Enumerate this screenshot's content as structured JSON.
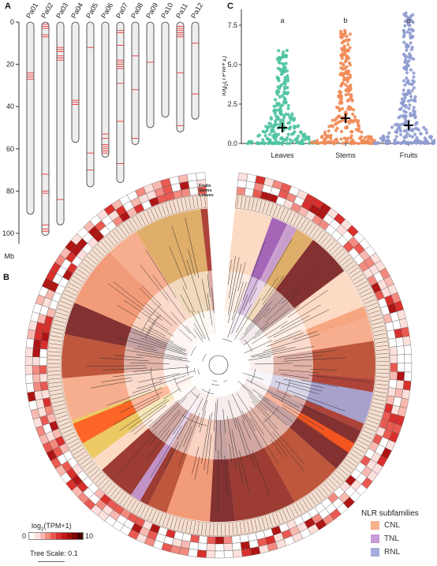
{
  "panels": {
    "a": "A",
    "b": "B",
    "c": "C"
  },
  "panel_a": {
    "chromosomes": [
      {
        "name": "Pa01",
        "length": 91,
        "marks": [
          24,
          25,
          26,
          27
        ]
      },
      {
        "name": "Pa02",
        "length": 101,
        "marks": [
          1,
          2,
          3,
          6,
          7,
          72,
          80,
          81,
          96,
          98,
          99
        ]
      },
      {
        "name": "Pa03",
        "length": 96,
        "marks": [
          12,
          13,
          14,
          16,
          17,
          18,
          84
        ]
      },
      {
        "name": "Pa04",
        "length": 57,
        "marks": [
          37,
          38,
          39
        ]
      },
      {
        "name": "Pa05",
        "length": 78,
        "marks": [
          12,
          62,
          70
        ]
      },
      {
        "name": "Pa06",
        "length": 64,
        "marks": [
          53,
          55,
          58,
          59,
          60,
          61,
          62
        ]
      },
      {
        "name": "Pa07",
        "length": 76,
        "marks": [
          4,
          5,
          11,
          18,
          19,
          20,
          21,
          22,
          29,
          47,
          67
        ]
      },
      {
        "name": "Pa08",
        "length": 58,
        "marks": [
          16,
          32,
          55
        ]
      },
      {
        "name": "Pa09",
        "length": 50,
        "marks": [
          19
        ]
      },
      {
        "name": "Pa10",
        "length": 45,
        "marks": []
      },
      {
        "name": "Pa11",
        "length": 52,
        "marks": [
          2,
          3,
          4,
          5,
          6,
          7,
          24,
          49
        ]
      },
      {
        "name": "Pa12",
        "length": 46,
        "marks": [
          10,
          34
        ]
      }
    ],
    "y_ticks": [
      0,
      20,
      40,
      60,
      80,
      100
    ],
    "y_unit": "Mb"
  },
  "chart_data": [
    {
      "type": "scatter",
      "panel": "C",
      "ylabel_base": "log",
      "ylabel_sub": "2",
      "ylabel_rest": "(TPM+1)",
      "ylim": [
        0,
        8.5
      ],
      "yticks": [
        0.0,
        2.5,
        5.0,
        7.5
      ],
      "ytick_labels": [
        "0.0",
        "2.5",
        "5.0",
        "7.5"
      ],
      "categories": [
        "Leaves",
        "Stems",
        "Fruits"
      ],
      "colors": [
        "#4fc3a1",
        "#f28a55",
        "#8f9bd0"
      ],
      "means": [
        1.0,
        1.6,
        1.15
      ],
      "max_values": [
        6.0,
        7.3,
        8.3
      ],
      "significance": [
        "a",
        "b",
        "a"
      ]
    }
  ],
  "panel_b": {
    "ring_labels": [
      "Fruits",
      "Stems",
      "Leaves"
    ],
    "heat_legend_title_base": "log",
    "heat_legend_title_sub": "2",
    "heat_legend_title_rest": "(TPM+1)",
    "heat_min": "0",
    "heat_max": "10",
    "tree_scale_label": "Tree Scale: 0.1",
    "subfamily_title": "NLR subfamilies",
    "subfamilies": [
      {
        "name": "CNL",
        "color": "#f6b08c"
      },
      {
        "name": "TNL",
        "color": "#c79bd6"
      },
      {
        "name": "RNL",
        "color": "#a6acdb"
      }
    ]
  }
}
